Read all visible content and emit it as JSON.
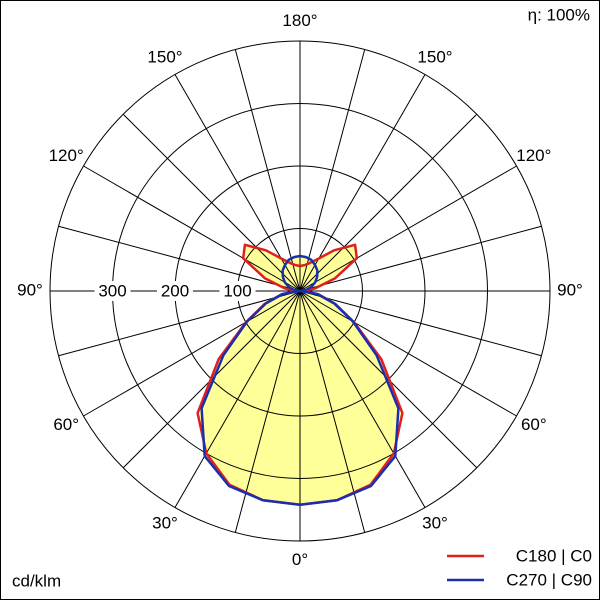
{
  "chart_data": {
    "type": "polar",
    "corner_note": "η: 100%",
    "unit_label": "cd/klm",
    "angles": [
      0,
      10,
      20,
      30,
      40,
      50,
      60,
      70,
      80,
      90,
      100,
      110,
      120,
      130,
      140,
      150,
      160,
      170,
      180
    ],
    "series": [
      {
        "name": "C180 | C0",
        "color": "#e02020",
        "values": [
          342,
          340,
          330,
          300,
          255,
          170,
          100,
          60,
          30,
          5,
          25,
          60,
          105,
          115,
          85,
          60,
          48,
          42,
          40
        ]
      },
      {
        "name": "C270 | C90",
        "color": "#1a2fb0",
        "values": [
          342,
          340,
          332,
          305,
          245,
          160,
          98,
          58,
          28,
          0,
          10,
          19,
          28,
          36,
          43,
          48,
          53,
          55,
          56
        ]
      }
    ],
    "fill_color": "#ffff99",
    "rlim": [
      0,
      400
    ],
    "rticks": [
      100,
      200,
      300
    ],
    "angle_ticks": [
      {
        "value": 0,
        "label": "0°"
      },
      {
        "value": 30,
        "label": "30°"
      },
      {
        "value": 60,
        "label": "60°"
      },
      {
        "value": 90,
        "label": "90°"
      },
      {
        "value": 120,
        "label": "120°"
      },
      {
        "value": 150,
        "label": "150°"
      },
      {
        "value": 180,
        "label": "180°"
      }
    ],
    "legend": "bottom-right"
  }
}
